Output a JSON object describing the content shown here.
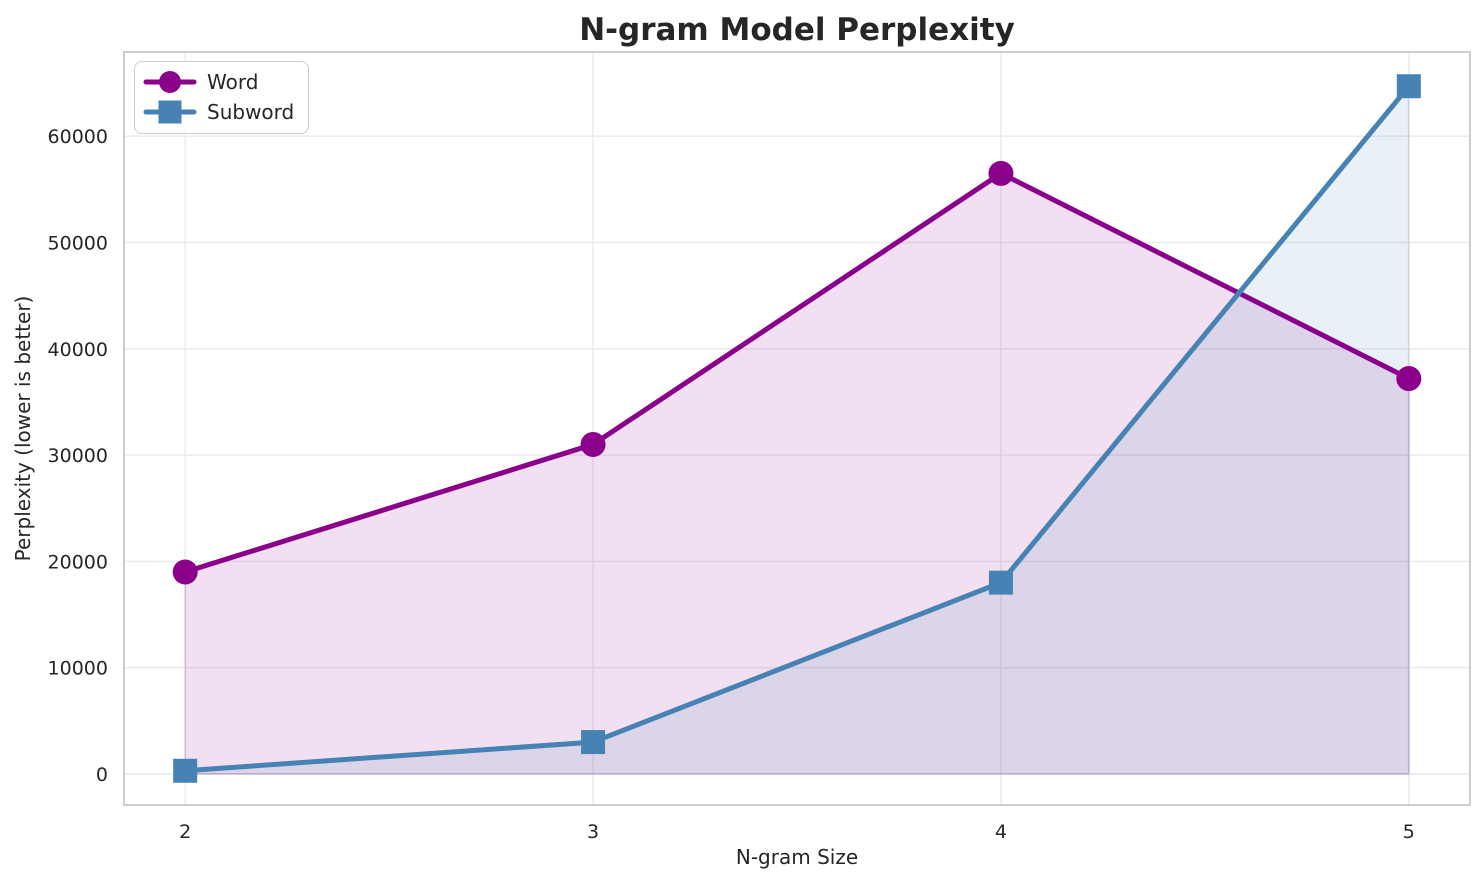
{
  "chart_data": {
    "type": "line",
    "title": "N-gram Model Perplexity",
    "xlabel": "N-gram Size",
    "ylabel": "Perplexity (lower is better)",
    "x": [
      2,
      3,
      4,
      5
    ],
    "series": [
      {
        "name": "Word",
        "values": [
          19000,
          31000,
          56500,
          37200
        ],
        "color": "#8B008B",
        "marker": "circle",
        "fill_to_zero": true
      },
      {
        "name": "Subword",
        "values": [
          300,
          3000,
          18000,
          64700
        ],
        "color": "#4682B4",
        "marker": "square",
        "fill_to_zero": true
      }
    ],
    "xticks": [
      "2",
      "3",
      "4",
      "5"
    ],
    "yticks": [
      0,
      10000,
      20000,
      30000,
      40000,
      50000,
      60000
    ],
    "xlim": [
      1.85,
      5.15
    ],
    "ylim": [
      -2920,
      67920
    ],
    "grid": true,
    "legend_position": "upper left",
    "fill_opacity": 0.12,
    "line_width": 5,
    "colors": {
      "text": "#262626",
      "grid": "#ececec",
      "spine": "#c8c8c8",
      "background": "#ffffff"
    }
  }
}
